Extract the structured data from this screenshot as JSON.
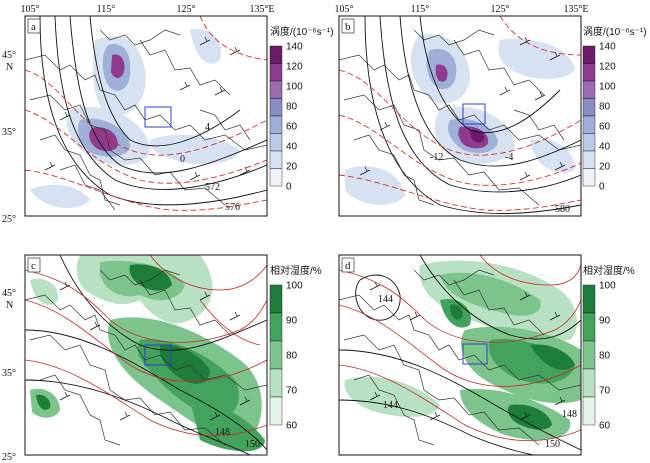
{
  "lon_ticks": [
    "105°",
    "115°",
    "125°",
    "135°E"
  ],
  "lat_ticks": {
    "top": [
      "45°",
      "35°",
      "25°"
    ],
    "north": "N"
  },
  "panels": [
    {
      "id": "a",
      "letter": "a",
      "colorbar": "vorticity"
    },
    {
      "id": "b",
      "letter": "b",
      "colorbar": "vorticity"
    },
    {
      "id": "c",
      "letter": "c",
      "colorbar": "humidity"
    },
    {
      "id": "d",
      "letter": "d",
      "colorbar": "humidity"
    }
  ],
  "colorbars": {
    "vorticity": {
      "title": "涡度/(10⁻⁶s⁻¹)",
      "ticks": [
        "140",
        "120",
        "100",
        "80",
        "60",
        "40",
        "20",
        "0"
      ],
      "colors": [
        "#6a1b6a",
        "#8e3b8e",
        "#9c6bb0",
        "#8a8cc4",
        "#9fb0d8",
        "#b9cbe6",
        "#d6e2f1",
        "#eef3f9"
      ]
    },
    "humidity": {
      "title": "相对湿度/%",
      "ticks": [
        "100",
        "90",
        "80",
        "70",
        "60"
      ],
      "colors": [
        "#1e7d3a",
        "#43a35c",
        "#7cc38c",
        "#b8e0c2",
        "#e6f4ea"
      ]
    }
  },
  "contour_labels": {
    "a": [
      "572",
      "576",
      "0",
      "4",
      "-4",
      "5"
    ],
    "b": [
      "580",
      "-12",
      "-4",
      "4"
    ],
    "c": [
      "148",
      "150"
    ],
    "d": [
      "144",
      "144",
      "148",
      "150",
      "144"
    ]
  },
  "colors": {
    "black_contour": "#111111",
    "red_contour": "#d32f2f",
    "box": "#2c3fd0"
  }
}
